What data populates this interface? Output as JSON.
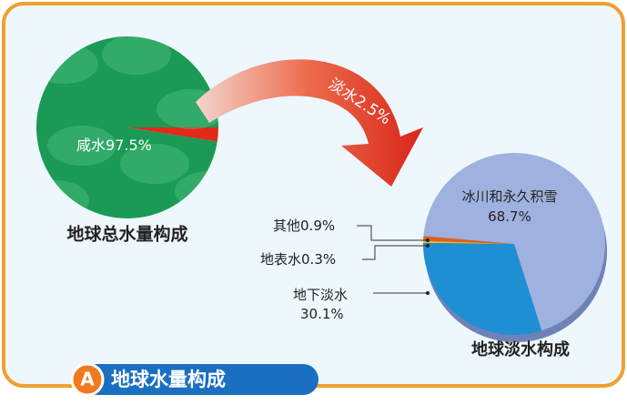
{
  "badge": "A",
  "title": "地球水量构成",
  "chart_data": [
    {
      "type": "pie",
      "title": "地球总水量构成",
      "categories": [
        "咸水",
        "淡水"
      ],
      "values": [
        97.5,
        2.5
      ],
      "value_labels": [
        "97.5%",
        "2.5%"
      ],
      "colors": [
        "#1a9a55",
        "#e02a1a"
      ]
    },
    {
      "type": "pie",
      "title": "地球淡水构成",
      "categories": [
        "其他",
        "地表水",
        "地下淡水",
        "冰川和永久积雪"
      ],
      "values": [
        0.9,
        0.3,
        30.1,
        68.7
      ],
      "value_labels": [
        "0.9%",
        "0.3%",
        "30.1%",
        "68.7%"
      ],
      "colors": [
        "#e0601a",
        "#f0c020",
        "#1e8fd2",
        "#9fb2df"
      ]
    }
  ]
}
